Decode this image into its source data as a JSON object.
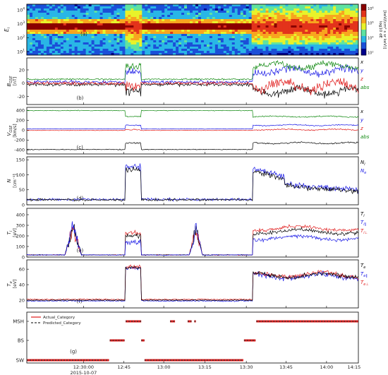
{
  "chart_data": [
    {
      "id": "a",
      "type": "heatmap",
      "panel_label": "(a)",
      "ylabel_main": "E",
      "ylabel_sub": "i",
      "ylabel_unit": "[eV]",
      "yticks": [
        "10",
        "10",
        "10",
        "10"
      ],
      "yticks_exp": [
        "4",
        "3",
        "2",
        "1"
      ],
      "ylim_log10": [
        1,
        4.6
      ],
      "colorbar": {
        "label": "[keV/(cm² s sr keV)]",
        "label2": "log10 dE",
        "ticks": [
          "10",
          "10",
          "10",
          "10"
        ],
        "ticks_exp": [
          "8",
          "6",
          "4",
          "2"
        ],
        "colors": [
          "#00008b",
          "#1b4fd8",
          "#29b6e6",
          "#5fe3a1",
          "#e8f22a",
          "#f8a51f",
          "#e3331b",
          "#8b0000"
        ]
      },
      "regions": [
        {
          "x0": 0,
          "x1": 0.297,
          "kind": "sw"
        },
        {
          "x0": 0.297,
          "x1": 0.345,
          "kind": "msh"
        },
        {
          "x0": 0.345,
          "x1": 0.682,
          "kind": "sw"
        },
        {
          "x0": 0.682,
          "x1": 1.0,
          "kind": "msh"
        }
      ]
    },
    {
      "id": "b",
      "type": "line",
      "panel_label": "(b)",
      "ylabel": "B",
      "ylabel_sub": "GSE",
      "ylabel_unit": "[nT]",
      "yticks": [
        -20,
        0,
        20
      ],
      "ylim": [
        -32,
        38
      ],
      "series": [
        {
          "name": "x",
          "color": "#000000",
          "sw": -2,
          "msh": -12,
          "noise_sw": 2,
          "noise_msh": 5
        },
        {
          "name": "y",
          "color": "#1515e6",
          "sw": 2,
          "msh": 18,
          "noise_sw": 2,
          "noise_msh": 5
        },
        {
          "name": "z",
          "color": "#e01a1a",
          "sw": 0,
          "msh": -4,
          "noise_sw": 2,
          "noise_msh": 6
        },
        {
          "name": "abs",
          "color": "#128a12",
          "sw": 6,
          "msh": 26,
          "noise_sw": 1,
          "noise_msh": 4
        }
      ]
    },
    {
      "id": "c",
      "type": "line",
      "panel_label": "(c)",
      "ylabel": "V",
      "ylabel_sub": "GSE",
      "ylabel_unit": "[km/s]",
      "yticks": [
        -400,
        -200,
        0,
        200,
        400
      ],
      "ylim": [
        -480,
        460
      ],
      "series": [
        {
          "name": "x",
          "color": "#000000",
          "sw": -390,
          "msh": -260,
          "noise_sw": 6,
          "noise_msh": 12
        },
        {
          "name": "y",
          "color": "#1515e6",
          "sw": 25,
          "msh": 100,
          "noise_sw": 4,
          "noise_msh": 10
        },
        {
          "name": "z",
          "color": "#e01a1a",
          "sw": -5,
          "msh": 10,
          "noise_sw": 4,
          "noise_msh": 10
        },
        {
          "name": "abs",
          "color": "#128a12",
          "sw": 395,
          "msh": 275,
          "noise_sw": 6,
          "noise_msh": 10
        }
      ]
    },
    {
      "id": "d",
      "type": "line",
      "panel_label": "(d)",
      "ylabel": "N",
      "ylabel_sub": "",
      "ylabel_unit": "[cm⁻³]",
      "yticks": [
        0,
        50,
        100,
        150
      ],
      "ylim": [
        0,
        160
      ],
      "legend": [
        {
          "name": "N",
          "sub": "i",
          "color": "#000000"
        },
        {
          "name": "N",
          "sub": "e",
          "color": "#1515e6"
        }
      ]
    },
    {
      "id": "e",
      "type": "line",
      "panel_label": "(e)",
      "ylabel": "T",
      "ylabel_sub": "i",
      "ylabel_unit": "[eV]",
      "yticks": [
        0,
        100,
        200,
        300,
        400
      ],
      "ylim": [
        0,
        460
      ],
      "legend": [
        {
          "name": "T",
          "sub": "i",
          "color": "#000000"
        },
        {
          "name": "T",
          "sub": "i∥",
          "color": "#1515e6"
        },
        {
          "name": "T",
          "sub": "i⊥",
          "color": "#e01a1a"
        }
      ]
    },
    {
      "id": "f",
      "type": "line",
      "panel_label": "(f)",
      "ylabel": "T",
      "ylabel_sub": "e",
      "ylabel_unit": "[eV]",
      "yticks": [
        20,
        40,
        60
      ],
      "ylim": [
        10,
        72
      ],
      "legend": [
        {
          "name": "T",
          "sub": "e",
          "color": "#000000"
        },
        {
          "name": "T",
          "sub": "e∥",
          "color": "#1515e6"
        },
        {
          "name": "T",
          "sub": "e⊥",
          "color": "#e01a1a"
        }
      ]
    },
    {
      "id": "g",
      "type": "scatter",
      "panel_label": "(g)",
      "categories": [
        "MSH",
        "BS",
        "SW"
      ],
      "legend": [
        {
          "name": "Actual_Category",
          "color": "#e01a1a",
          "style": "solid"
        },
        {
          "name": "Predicted_Category",
          "color": "#333333",
          "style": "dashed"
        }
      ],
      "segments": [
        {
          "cat": "SW",
          "x0": 0,
          "x1": 0.248
        },
        {
          "cat": "BS",
          "x0": 0.25,
          "x1": 0.295
        },
        {
          "cat": "MSH",
          "x0": 0.298,
          "x1": 0.345
        },
        {
          "cat": "BS",
          "x0": 0.345,
          "x1": 0.355
        },
        {
          "cat": "SW",
          "x0": 0.355,
          "x1": 0.653
        },
        {
          "cat": "MSH",
          "x0": 0.432,
          "x1": 0.447
        },
        {
          "cat": "MSH",
          "x0": 0.485,
          "x1": 0.497
        },
        {
          "cat": "MSH",
          "x0": 0.505,
          "x1": 0.51
        },
        {
          "cat": "BS",
          "x0": 0.655,
          "x1": 0.69
        },
        {
          "cat": "MSH",
          "x0": 0.692,
          "x1": 1.0
        }
      ]
    }
  ],
  "xaxis": {
    "ticks": [
      "12:30:00",
      "12:45",
      "13:00",
      "13:15",
      "13:30",
      "13:45",
      "14:00",
      "14:15"
    ],
    "date": "2015-10-07",
    "xlim": [
      "12:20",
      "14:20"
    ]
  },
  "right_labels": {
    "b": [
      "x",
      "y",
      "z",
      "abs"
    ],
    "c": [
      "x",
      "y",
      "z",
      "abs"
    ]
  }
}
